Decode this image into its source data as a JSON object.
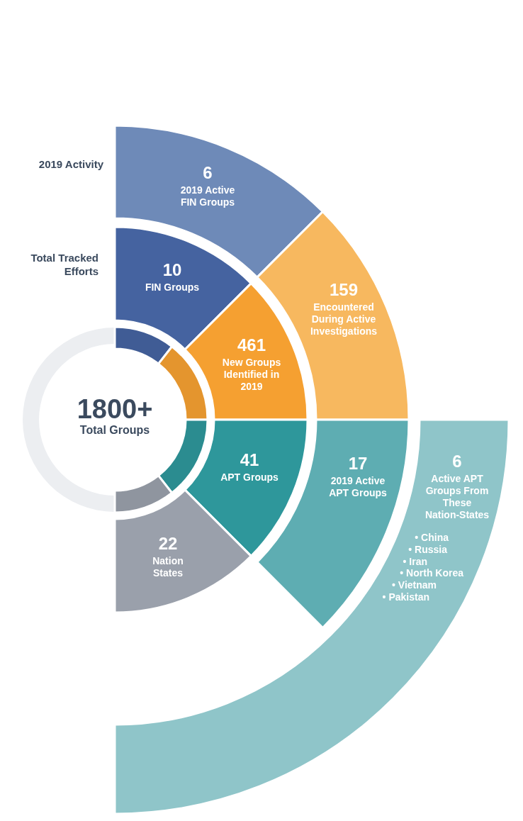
{
  "chart_data": {
    "type": "other",
    "categories": [
      "Total Groups",
      "FIN Groups",
      "New Groups Identified in 2019",
      "APT Groups",
      "Nation States",
      "2019 Active FIN Groups",
      "Encountered During Active Investigations",
      "2019 Active APT Groups",
      "Active APT Groups From These Nation-States"
    ],
    "values": [
      1800,
      10,
      461,
      41,
      22,
      6,
      159,
      17,
      6
    ],
    "value_labels": [
      "1800+",
      "10",
      "461",
      "41",
      "22",
      "6",
      "159",
      "17",
      "6"
    ],
    "colors": [
      "#eceef1",
      "#4563a0",
      "#f5a031",
      "#2e979b",
      "#9aa0ab",
      "#6e8ab8",
      "#f7b85f",
      "#5eadb2",
      "#8fc5c9"
    ],
    "annotations": [
      "2019 Activity",
      "Total Tracked Efforts",
      "• China",
      "• Russia",
      "• Iran",
      "• North Korea",
      "• Vietnam",
      "• Pakistan"
    ]
  }
}
